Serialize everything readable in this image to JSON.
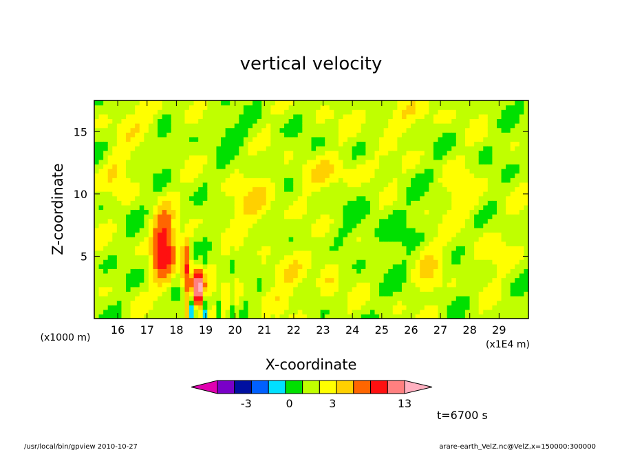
{
  "chart_data": {
    "type": "heatmap",
    "title": "vertical velocity",
    "xlabel": "X-coordinate",
    "ylabel": "Z-coordinate",
    "x_unit_left": "(x1000 m)",
    "x_unit_right": "(x1E4 m)",
    "xlim": [
      15.2,
      30.0
    ],
    "ylim": [
      0.0,
      17.5
    ],
    "x_ticks": [
      16,
      17,
      18,
      19,
      20,
      21,
      22,
      23,
      24,
      25,
      26,
      27,
      28,
      29
    ],
    "x_tick_labels": [
      "16",
      "17",
      "18",
      "19",
      "20",
      "21",
      "22",
      "23",
      "24",
      "25",
      "26",
      "27",
      "28",
      "29"
    ],
    "y_ticks": [
      5,
      10,
      15
    ],
    "y_tick_labels": [
      "5",
      "10",
      "15"
    ],
    "time_label": "t=6700 s",
    "colorbar": {
      "levels": [
        -5,
        -4,
        -3,
        -2,
        -1,
        0,
        1,
        2,
        3,
        5,
        7,
        9,
        11,
        13
      ],
      "labels": [
        {
          "value": -3,
          "text": "-3"
        },
        {
          "value": 0,
          "text": "0"
        },
        {
          "value": 3,
          "text": "3"
        },
        {
          "value": 13,
          "text": "13"
        }
      ],
      "colors": [
        "#e000b0",
        "#7a00c8",
        "#0010a0",
        "#0060ff",
        "#00e0ff",
        "#00e000",
        "#c0ff00",
        "#ffff00",
        "#ffd000",
        "#ff6600",
        "#ff1010",
        "#ff8080",
        "#ffb0c0"
      ]
    },
    "background_value": 0.5,
    "features": [
      {
        "x": 17.55,
        "z": 5.8,
        "sx": 0.35,
        "sz": 2.6,
        "amp": 6.2
      },
      {
        "x": 18.35,
        "z": 4.2,
        "sx": 0.18,
        "sz": 1.9,
        "amp": 4.3
      },
      {
        "x": 18.75,
        "z": 2.5,
        "sx": 0.22,
        "sz": 1.2,
        "amp": 9.0
      },
      {
        "x": 16.0,
        "z": 11.8,
        "sx": 0.55,
        "sz": 1.6,
        "amp": 1.2
      },
      {
        "x": 20.6,
        "z": 9.2,
        "sx": 0.9,
        "sz": 2.2,
        "amp": 1.3
      },
      {
        "x": 22.6,
        "z": 11.5,
        "sx": 0.7,
        "sz": 1.4,
        "amp": 1.1
      },
      {
        "x": 24.3,
        "z": 12.0,
        "sx": 1.1,
        "sz": 1.1,
        "amp": 1.1
      },
      {
        "x": 27.8,
        "z": 9.8,
        "sx": 0.6,
        "sz": 1.8,
        "amp": 1.3
      },
      {
        "x": 26.6,
        "z": 4.0,
        "sx": 0.45,
        "sz": 3.0,
        "amp": 1.2
      },
      {
        "x": 21.6,
        "z": 3.0,
        "sx": 0.9,
        "sz": 2.0,
        "amp": 1.1
      },
      {
        "x": 23.2,
        "z": 3.5,
        "sx": 0.35,
        "sz": 2.8,
        "amp": 1.1
      },
      {
        "x": 28.6,
        "z": 5.0,
        "sx": 0.7,
        "sz": 1.4,
        "amp": 1.0
      },
      {
        "x": 16.5,
        "z": 16.0,
        "sx": 1.0,
        "sz": 1.5,
        "amp": 1.0
      },
      {
        "x": 25.5,
        "z": 16.2,
        "sx": 1.6,
        "sz": 1.2,
        "amp": 1.0
      },
      {
        "x": 19.8,
        "z": 15.0,
        "sx": 0.8,
        "sz": 1.0,
        "amp": -0.9
      },
      {
        "x": 25.0,
        "z": 7.0,
        "sx": 1.2,
        "sz": 2.5,
        "amp": -0.7
      }
    ]
  },
  "footer": {
    "left": "/usr/local/bin/gpview   2010-10-27",
    "right": "arare-earth_VelZ.nc@VelZ,x=150000:300000"
  }
}
